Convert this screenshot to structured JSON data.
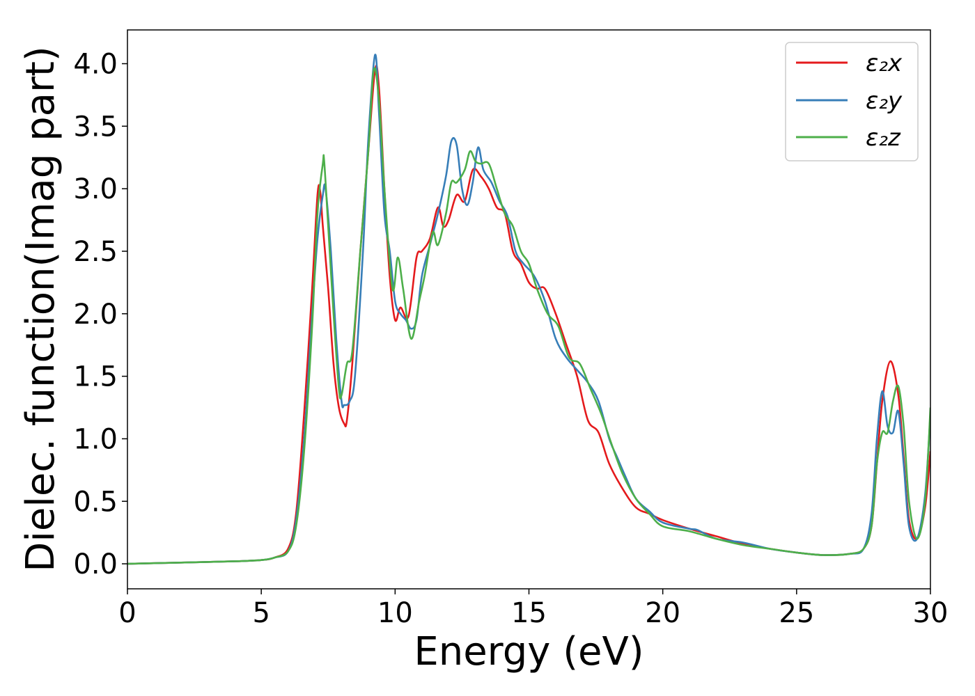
{
  "chart_data": {
    "type": "line",
    "title": "",
    "xlabel": "Energy (eV)",
    "ylabel": "Dielec. function(Imag part)",
    "xlim": [
      0,
      30
    ],
    "ylim": [
      -0.2,
      4.27
    ],
    "xticks": [
      0,
      5,
      10,
      15,
      20,
      25,
      30
    ],
    "xtick_labels": [
      "0",
      "5",
      "10",
      "15",
      "20",
      "25",
      "30"
    ],
    "yticks": [
      0.0,
      0.5,
      1.0,
      1.5,
      2.0,
      2.5,
      3.0,
      3.5,
      4.0
    ],
    "ytick_labels": [
      "0.0",
      "0.5",
      "1.0",
      "1.5",
      "2.0",
      "2.5",
      "3.0",
      "3.5",
      "4.0"
    ],
    "grid": false,
    "legend_position": "top-right",
    "series": [
      {
        "name": "ε₂x",
        "color": "#e41a1c",
        "x": [
          0,
          2,
          4,
          5,
          5.5,
          6,
          6.3,
          6.6,
          6.9,
          7.1,
          7.2,
          7.3,
          7.5,
          7.7,
          7.9,
          8.1,
          8.2,
          8.4,
          8.7,
          9.0,
          9.25,
          9.4,
          9.6,
          9.8,
          10.0,
          10.2,
          10.5,
          10.8,
          11.0,
          11.3,
          11.6,
          11.8,
          12.0,
          12.3,
          12.6,
          12.9,
          13.2,
          13.5,
          13.8,
          14.1,
          14.4,
          14.7,
          15.0,
          15.3,
          15.6,
          16.0,
          16.4,
          16.8,
          17.2,
          17.6,
          18.0,
          18.5,
          19.0,
          19.5,
          20.0,
          21.0,
          22.0,
          23.0,
          24.0,
          25.0,
          26.0,
          27.0,
          27.5,
          27.8,
          28.0,
          28.2,
          28.5,
          28.8,
          29.0,
          29.2,
          29.5,
          29.8,
          30.0
        ],
        "y": [
          0.0,
          0.01,
          0.02,
          0.03,
          0.05,
          0.12,
          0.4,
          1.2,
          2.2,
          2.95,
          2.98,
          2.7,
          2.2,
          1.6,
          1.25,
          1.12,
          1.15,
          1.6,
          2.5,
          3.3,
          3.95,
          3.8,
          3.0,
          2.3,
          1.95,
          2.05,
          1.98,
          2.45,
          2.5,
          2.6,
          2.85,
          2.7,
          2.75,
          2.95,
          2.9,
          3.15,
          3.1,
          3.0,
          2.85,
          2.8,
          2.5,
          2.4,
          2.25,
          2.2,
          2.2,
          2.0,
          1.75,
          1.5,
          1.15,
          1.05,
          0.8,
          0.6,
          0.45,
          0.4,
          0.35,
          0.28,
          0.22,
          0.16,
          0.12,
          0.09,
          0.07,
          0.08,
          0.12,
          0.3,
          0.8,
          1.3,
          1.62,
          1.35,
          0.85,
          0.35,
          0.2,
          0.45,
          0.9
        ]
      },
      {
        "name": "ε₂y",
        "color": "#377eb8",
        "x": [
          0,
          2,
          4,
          5,
          5.5,
          6,
          6.3,
          6.6,
          6.9,
          7.1,
          7.3,
          7.4,
          7.6,
          7.8,
          8.0,
          8.1,
          8.3,
          8.5,
          8.8,
          9.0,
          9.25,
          9.4,
          9.6,
          9.8,
          10.0,
          10.2,
          10.4,
          10.6,
          10.8,
          11.0,
          11.3,
          11.6,
          11.9,
          12.1,
          12.3,
          12.5,
          12.7,
          12.9,
          13.1,
          13.3,
          13.6,
          13.9,
          14.2,
          14.5,
          14.8,
          15.2,
          15.6,
          16.0,
          16.4,
          16.8,
          17.2,
          17.6,
          18.0,
          18.3,
          18.6,
          19.0,
          19.5,
          20.0,
          21.0,
          21.3,
          22.0,
          23.0,
          24.0,
          25.0,
          26.0,
          27.0,
          27.5,
          27.8,
          28.0,
          28.2,
          28.4,
          28.6,
          28.8,
          29.0,
          29.2,
          29.5,
          29.8,
          30.0
        ],
        "y": [
          0.0,
          0.01,
          0.02,
          0.03,
          0.05,
          0.1,
          0.35,
          1.0,
          2.0,
          2.6,
          2.95,
          3.0,
          2.5,
          1.8,
          1.3,
          1.27,
          1.3,
          1.5,
          2.5,
          3.4,
          4.07,
          3.6,
          2.8,
          2.5,
          2.1,
          2.0,
          1.95,
          1.88,
          1.95,
          2.3,
          2.55,
          2.8,
          3.1,
          3.38,
          3.35,
          3.0,
          2.87,
          3.05,
          3.33,
          3.15,
          3.05,
          2.9,
          2.78,
          2.5,
          2.4,
          2.3,
          2.1,
          1.8,
          1.65,
          1.55,
          1.45,
          1.3,
          1.0,
          0.85,
          0.7,
          0.52,
          0.42,
          0.33,
          0.28,
          0.27,
          0.2,
          0.17,
          0.12,
          0.09,
          0.07,
          0.08,
          0.12,
          0.4,
          1.0,
          1.38,
          1.1,
          1.05,
          1.22,
          0.8,
          0.3,
          0.2,
          0.55,
          1.2
        ]
      },
      {
        "name": "ε₂z",
        "color": "#4daf4a",
        "x": [
          0,
          2,
          4,
          5,
          5.5,
          6,
          6.3,
          6.6,
          6.9,
          7.1,
          7.3,
          7.35,
          7.5,
          7.7,
          7.9,
          8.0,
          8.2,
          8.4,
          8.7,
          9.0,
          9.2,
          9.4,
          9.6,
          9.9,
          10.1,
          10.3,
          10.6,
          10.9,
          11.1,
          11.4,
          11.6,
          11.9,
          12.1,
          12.3,
          12.6,
          12.8,
          13.0,
          13.2,
          13.5,
          13.8,
          14.1,
          14.4,
          14.7,
          15.0,
          15.3,
          15.7,
          16.1,
          16.5,
          16.9,
          17.3,
          17.7,
          18.1,
          18.5,
          19.0,
          19.5,
          20.0,
          21.0,
          22.0,
          23.0,
          24.0,
          25.0,
          26.0,
          27.0,
          27.5,
          27.8,
          28.0,
          28.2,
          28.4,
          28.6,
          28.8,
          29.0,
          29.2,
          29.5,
          29.8,
          30.0
        ],
        "y": [
          0.0,
          0.01,
          0.02,
          0.03,
          0.05,
          0.1,
          0.3,
          0.9,
          1.9,
          2.8,
          3.2,
          3.22,
          2.7,
          2.0,
          1.4,
          1.35,
          1.6,
          1.7,
          2.5,
          3.3,
          3.95,
          3.7,
          3.0,
          2.2,
          2.45,
          2.2,
          1.8,
          2.1,
          2.3,
          2.65,
          2.55,
          2.8,
          3.05,
          3.05,
          3.15,
          3.3,
          3.22,
          3.2,
          3.2,
          3.0,
          2.8,
          2.7,
          2.5,
          2.4,
          2.2,
          2.0,
          1.9,
          1.65,
          1.6,
          1.4,
          1.2,
          0.95,
          0.72,
          0.52,
          0.4,
          0.3,
          0.26,
          0.2,
          0.15,
          0.12,
          0.09,
          0.07,
          0.08,
          0.12,
          0.3,
          0.8,
          1.05,
          1.05,
          1.3,
          1.42,
          1.1,
          0.5,
          0.2,
          0.5,
          1.25
        ]
      }
    ]
  }
}
